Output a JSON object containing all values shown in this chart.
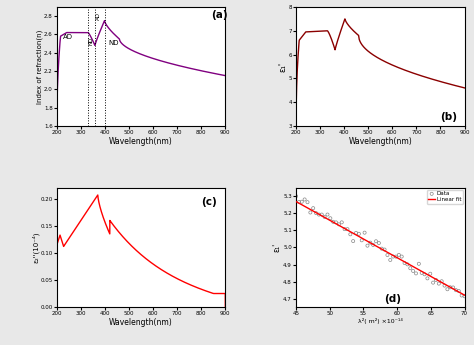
{
  "fig_bg": "#e8e8e8",
  "panel_bg": "#ffffff",
  "title_a": "(a)",
  "title_b": "(b)",
  "title_c": "(c)",
  "title_d": "(d)",
  "xlabel": "Wavelength(nm)",
  "xlabel_d": "λ²( m²) ×10⁻¹⁴",
  "ylabel_a": "Index of refraction(n)",
  "ylabel_b": "ε₁'",
  "ylabel_c": "ε₂''(10⁻⁴)",
  "ylabel_d": "ε₁'",
  "color_a": "#800080",
  "color_b": "#8B0000",
  "color_c": "#FF0000",
  "color_d_data": "#888888",
  "color_d_fit": "#FF0000",
  "ylim_a": [
    1.6,
    2.9
  ],
  "ylim_b": [
    3.0,
    8.0
  ],
  "ylim_c": [
    0.0,
    0.22
  ],
  "ylim_d": [
    4.65,
    5.35
  ],
  "xlim_ab": [
    200,
    900
  ],
  "xlim_d": [
    45,
    70
  ]
}
